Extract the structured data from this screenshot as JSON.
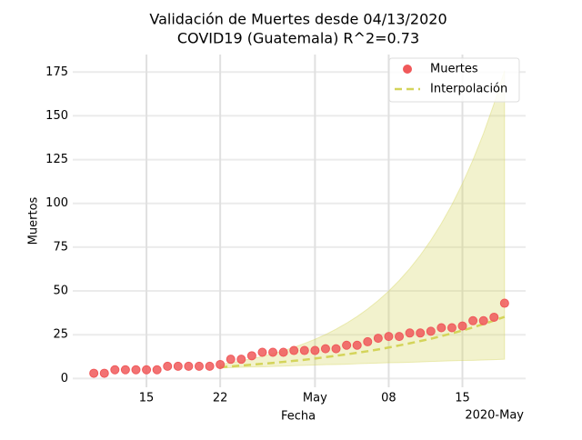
{
  "chart_data": {
    "type": "scatter",
    "title": [
      "Validación de Muertes desde 04/13/2020",
      "COVID19 (Guatemala) R^2=0.73"
    ],
    "xlabel": "Fecha",
    "ylabel": "Muertos",
    "x_offset_label": "2020-May",
    "x": [
      "2020-04-10",
      "2020-04-11",
      "2020-04-12",
      "2020-04-13",
      "2020-04-14",
      "2020-04-15",
      "2020-04-16",
      "2020-04-17",
      "2020-04-18",
      "2020-04-19",
      "2020-04-20",
      "2020-04-21",
      "2020-04-22",
      "2020-04-23",
      "2020-04-24",
      "2020-04-25",
      "2020-04-26",
      "2020-04-27",
      "2020-04-28",
      "2020-04-29",
      "2020-04-30",
      "2020-05-01",
      "2020-05-02",
      "2020-05-03",
      "2020-05-04",
      "2020-05-05",
      "2020-05-06",
      "2020-05-07",
      "2020-05-08",
      "2020-05-09",
      "2020-05-10",
      "2020-05-11",
      "2020-05-12",
      "2020-05-13",
      "2020-05-14",
      "2020-05-15",
      "2020-05-16",
      "2020-05-17",
      "2020-05-18",
      "2020-05-19"
    ],
    "series": [
      {
        "name": "Muertes",
        "color": "#f0595a",
        "values": [
          3,
          3,
          5,
          5,
          5,
          5,
          5,
          7,
          7,
          7,
          7,
          7,
          8,
          11,
          11,
          13,
          15,
          15,
          15,
          16,
          16,
          16,
          17,
          17,
          19,
          19,
          21,
          23,
          24,
          24,
          26,
          26,
          27,
          29,
          29,
          30,
          33,
          33,
          35,
          43
        ]
      }
    ],
    "fit": {
      "name": "Interpolación",
      "color": "#d4d45a",
      "x": [
        "2020-04-22",
        "2020-04-23",
        "2020-04-24",
        "2020-04-25",
        "2020-04-26",
        "2020-04-27",
        "2020-04-28",
        "2020-04-29",
        "2020-04-30",
        "2020-05-01",
        "2020-05-02",
        "2020-05-03",
        "2020-05-04",
        "2020-05-05",
        "2020-05-06",
        "2020-05-07",
        "2020-05-08",
        "2020-05-09",
        "2020-05-10",
        "2020-05-11",
        "2020-05-12",
        "2020-05-13",
        "2020-05-14",
        "2020-05-15",
        "2020-05-16",
        "2020-05-17",
        "2020-05-18",
        "2020-05-19"
      ],
      "values": [
        6.5,
        6.9,
        7.4,
        7.9,
        8.4,
        8.9,
        9.5,
        10.1,
        10.7,
        11.4,
        12.2,
        13.0,
        13.8,
        14.7,
        15.6,
        16.6,
        17.7,
        18.9,
        20.1,
        21.4,
        22.7,
        24.2,
        25.8,
        27.4,
        29.2,
        31.1,
        33.1,
        35.2
      ],
      "upper": [
        8.0,
        9.0,
        10.1,
        11.3,
        12.6,
        14.2,
        15.9,
        17.8,
        20.0,
        22.4,
        25.1,
        28.2,
        31.6,
        35.4,
        39.7,
        44.5,
        49.9,
        56.0,
        62.8,
        70.4,
        78.9,
        88.5,
        99.2,
        111.3,
        124.8,
        139.9,
        156.9,
        175.9
      ],
      "lower": [
        6.0,
        6.2,
        6.4,
        6.6,
        6.7,
        6.9,
        7.1,
        7.3,
        7.5,
        7.7,
        7.9,
        8.0,
        8.2,
        8.4,
        8.6,
        8.8,
        9.0,
        9.1,
        9.3,
        9.5,
        9.7,
        9.9,
        10.1,
        10.3,
        10.4,
        10.6,
        10.8,
        11.0
      ]
    },
    "xlim": [
      "2020-04-08",
      "2020-05-21"
    ],
    "xticks": [
      {
        "value": "2020-04-15",
        "label": "15"
      },
      {
        "value": "2020-04-22",
        "label": "22"
      },
      {
        "value": "2020-05-01",
        "label": "May"
      },
      {
        "value": "2020-05-08",
        "label": "08"
      },
      {
        "value": "2020-05-15",
        "label": "15"
      }
    ],
    "ylim": [
      -5,
      185
    ],
    "yticks": [
      0,
      25,
      50,
      75,
      100,
      125,
      150,
      175
    ],
    "grid": true,
    "legend": "upper right"
  }
}
